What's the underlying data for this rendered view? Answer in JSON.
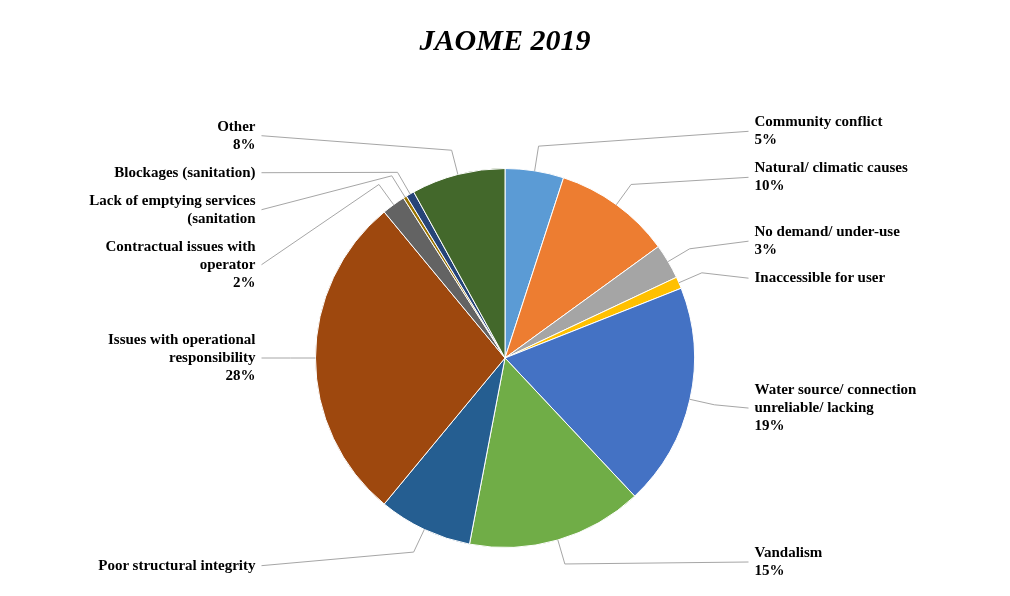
{
  "chart_data": {
    "type": "pie",
    "title": "JAOME 2019",
    "categories": [
      "Community conflict",
      "Natural/ climatic causes",
      "No demand/ under-use",
      "Inaccessible for user",
      "Water source/ connection unreliable/ lacking",
      "Vandalism",
      "Poor structural integrity",
      "Issues with operational responsibility",
      "Contractual issues with operator",
      "Lack of emptying services (sanitation",
      "Blockages (sanitation)",
      "Other"
    ],
    "values": [
      5,
      10,
      3,
      1,
      19,
      15,
      8,
      28,
      2,
      0.3,
      0.7,
      8
    ],
    "value_labels": [
      "5%",
      "10%",
      "3%",
      null,
      "19%",
      "15%",
      null,
      "28%",
      "2%",
      null,
      null,
      "8%"
    ],
    "colors": [
      "#5b9bd5",
      "#ed7d31",
      "#a5a5a5",
      "#ffc000",
      "#4472c4",
      "#70ad47",
      "#255e91",
      "#9e480e",
      "#636363",
      "#997300",
      "#264478",
      "#43682b"
    ],
    "legend": false
  }
}
